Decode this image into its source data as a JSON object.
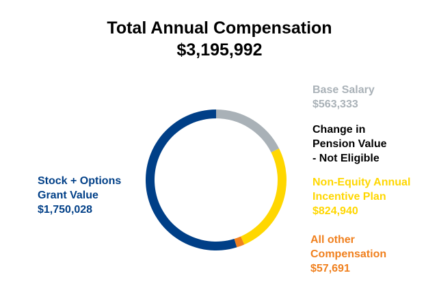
{
  "header": {
    "title": "Total Annual Compensation",
    "total": "$3,195,992"
  },
  "chart_data": {
    "type": "pie",
    "variant": "donut",
    "title": "Total Annual Compensation",
    "subtitle": "$3,195,992",
    "total": 3195992,
    "slices": [
      {
        "key": "base",
        "lines": [
          "Base Salary"
        ],
        "value_label": "$563,333",
        "value": 563333,
        "color": "#a9b1b7"
      },
      {
        "key": "pension",
        "lines": [
          "Change in",
          "Pension Value",
          "- Not Eligible"
        ],
        "value_label": "",
        "value": 0,
        "color": "#000000"
      },
      {
        "key": "nonequity",
        "lines": [
          "Non-Equity Annual",
          "Incentive Plan"
        ],
        "value_label": "$824,940",
        "value": 824940,
        "color": "#ffd700"
      },
      {
        "key": "other",
        "lines": [
          "All other",
          "Compensation"
        ],
        "value_label": "$57,691",
        "value": 57691,
        "color": "#f0801e"
      },
      {
        "key": "stock",
        "lines": [
          "Stock + Options",
          "Grant Value"
        ],
        "value_label": "$1,750,028",
        "value": 1750028,
        "color": "#003f87"
      }
    ]
  }
}
